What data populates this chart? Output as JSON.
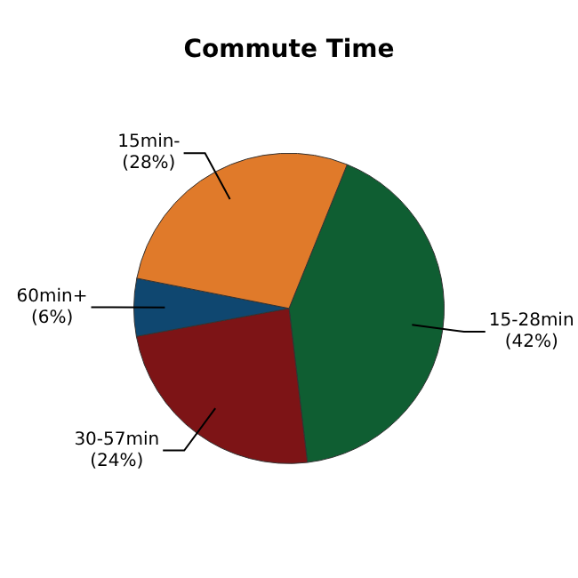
{
  "chart_data": {
    "type": "pie",
    "title": "Commute Time",
    "categories": [
      "15-28min",
      "30-57min",
      "60min+",
      "15min-"
    ],
    "values": [
      42,
      24,
      6,
      28
    ],
    "colors": [
      "#0f5e32",
      "#7d1416",
      "#0f4770",
      "#e07a2a"
    ],
    "value_labels": [
      "(42%)",
      "(24%)",
      "(6%)",
      "(28%)"
    ],
    "legend": false
  }
}
